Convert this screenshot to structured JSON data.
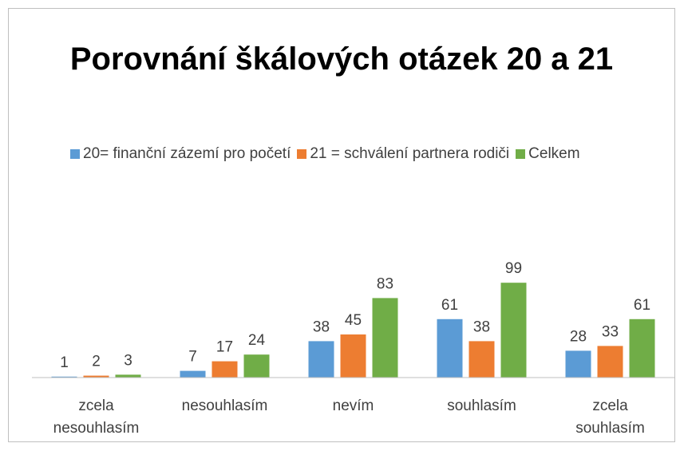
{
  "chart_data": {
    "type": "bar",
    "title": "Porovnání škálových otázek 20 a 21",
    "categories": [
      "zcela nesouhlasím",
      "nesouhlasím",
      "nevím",
      "souhlasím",
      "zcela souhlasím"
    ],
    "series": [
      {
        "name": "20= finanční zázemí pro početí",
        "color": "#5b9bd5",
        "values": [
          1,
          7,
          38,
          61,
          28
        ]
      },
      {
        "name": "21 = schválení partnera rodiči",
        "color": "#ed7d31",
        "values": [
          2,
          17,
          45,
          38,
          33
        ]
      },
      {
        "name": "Celkem",
        "color": "#70ad47",
        "values": [
          3,
          24,
          83,
          99,
          61
        ]
      }
    ],
    "ylim": [
      0,
      120
    ],
    "legend": "top"
  }
}
